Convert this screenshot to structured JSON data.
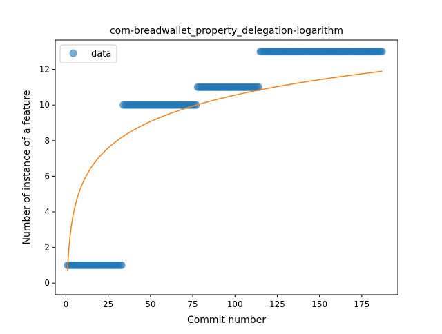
{
  "chart_data": {
    "type": "scatter",
    "title": "com-breadwallet_property_delegation-logarithm",
    "xlabel": "Commit number",
    "ylabel": "Number of instance of a feature",
    "xlim": [
      -6.3,
      196.3
    ],
    "ylim": [
      -0.65,
      13.65
    ],
    "xticks": [
      0,
      25,
      50,
      75,
      100,
      125,
      150,
      175
    ],
    "yticks": [
      0,
      2,
      4,
      6,
      8,
      10,
      12
    ],
    "grid": false,
    "legend_position": "top-left",
    "colors": {
      "data": "#1f77b4",
      "fit": "#ff7f0e"
    },
    "series": [
      {
        "name": "data",
        "kind": "points",
        "segments": [
          {
            "x_start": 1,
            "x_end": 33,
            "y": 1
          },
          {
            "x_start": 34,
            "x_end": 77,
            "y": 10
          },
          {
            "x_start": 78,
            "x_end": 114,
            "y": 11
          },
          {
            "x_start": 115,
            "x_end": 187,
            "y": 13
          }
        ]
      },
      {
        "kind": "line",
        "fit": "logarithmic",
        "x_range": [
          1,
          187
        ],
        "a": 0.7,
        "b": 2.14
      }
    ]
  }
}
